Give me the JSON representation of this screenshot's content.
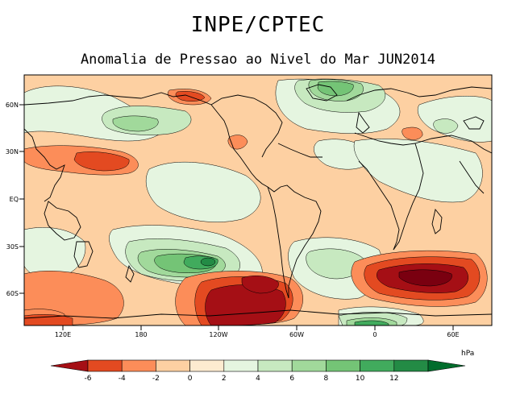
{
  "header": {
    "title": "INPE/CPTEC",
    "subtitle": "Anomalia de Pressao ao Nivel do Mar JUN2014"
  },
  "map": {
    "lat_labels": [
      "60N",
      "30N",
      "EQ",
      "30S",
      "60S"
    ],
    "lon_labels": [
      "120E",
      "180",
      "120W",
      "60W",
      "0",
      "60E"
    ]
  },
  "colorbar": {
    "unit": "hPa",
    "levels": [
      "-6",
      "-4",
      "-2",
      "0",
      "2",
      "4",
      "6",
      "8",
      "10",
      "12"
    ],
    "colors": [
      "#a50f15",
      "#e34a21",
      "#fc8d59",
      "#fdd0a2",
      "#fdebd0",
      "#e5f5e0",
      "#c7e9c0",
      "#a1d99b",
      "#74c476",
      "#41ab5d",
      "#238b45",
      "#006d2c"
    ]
  }
}
